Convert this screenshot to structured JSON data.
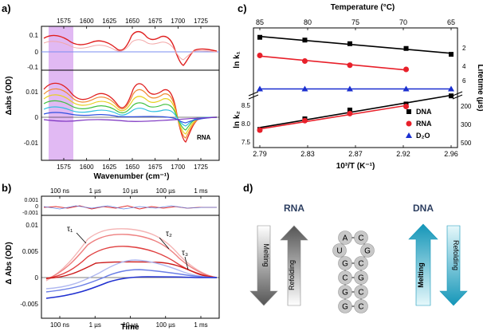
{
  "panel_labels": {
    "a": "a)",
    "b": "b)",
    "c": "c)",
    "d": "d)"
  },
  "panel_a": {
    "top_axis_ticks": [
      "1575",
      "1600",
      "1625",
      "1650",
      "1675",
      "1700",
      "1725"
    ],
    "bottom_axis_ticks": [
      "1575",
      "1600",
      "1625",
      "1650",
      "1675",
      "1700",
      "1725"
    ],
    "xlabel": "Wavenumber (cm⁻¹)",
    "ylabel": "Δabs (OD)",
    "upper_yticks": [
      "0.1",
      "0",
      "-0.1"
    ],
    "lower_yticks": [
      "0.01",
      "0",
      "-0.01"
    ],
    "annotation": "RNA"
  },
  "panel_b": {
    "top_axis_ticks": [
      "100 ns",
      "1 µs",
      "10 µs",
      "100 µs",
      "1 ms"
    ],
    "bottom_axis_ticks": [
      "100 ns",
      "1 µs",
      "10 µs",
      "100 µs",
      "1 ms"
    ],
    "xlabel": "Time",
    "ylabel": "Δ Abs (OD)",
    "upper_yticks": [
      "0.001",
      "0",
      "-0.001"
    ],
    "lower_yticks": [
      "0.01",
      "0.005",
      "0",
      "-0.005"
    ],
    "tau_labels": [
      "τ₁",
      "τ₂",
      "τ₃"
    ]
  },
  "panel_c": {
    "top_axis_label": "Temperature (°C)",
    "top_axis_ticks": [
      "85",
      "80",
      "75",
      "70",
      "65"
    ],
    "bottom_axis_ticks": [
      "2.79",
      "2.83",
      "2.87",
      "2.92",
      "2.96"
    ],
    "xlabel": "10³/T (K⁻¹)",
    "ylabel_upper": "ln k₁",
    "ylabel_lower": "ln k₂",
    "right_axis_label": "Lifetime (µs)",
    "right_ticks_upper": [
      "2",
      "4",
      "6"
    ],
    "right_ticks_lower": [
      "200",
      "300",
      "500"
    ],
    "left_ticks_lower": [
      "8.5",
      "8.0",
      "7.5"
    ],
    "legend": [
      "DNA",
      "RNA",
      "D₂O"
    ]
  },
  "chart_data": [
    {
      "type": "scatter",
      "panel": "c-upper",
      "series": [
        {
          "name": "DNA",
          "color": "#000000",
          "marker": "square",
          "x": [
            2.79,
            2.83,
            2.87,
            2.92,
            2.96
          ],
          "y": [
            0.95,
            0.85,
            0.72,
            0.55,
            0.34
          ]
        },
        {
          "name": "RNA",
          "color": "#e8202a",
          "marker": "circle",
          "x": [
            2.79,
            2.83,
            2.87,
            2.92
          ],
          "y": [
            0.3,
            0.1,
            -0.05,
            -0.2
          ]
        },
        {
          "name": "D₂O",
          "color": "#1a2fd0",
          "marker": "triangle",
          "x": [
            2.79,
            2.83,
            2.87,
            2.92,
            2.96
          ],
          "y": [
            -0.9,
            -0.9,
            -0.9,
            -0.9,
            -0.9
          ]
        }
      ]
    },
    {
      "type": "scatter",
      "panel": "c-lower",
      "series": [
        {
          "name": "DNA",
          "color": "#000000",
          "marker": "square",
          "x": [
            2.79,
            2.83,
            2.87,
            2.92,
            2.96
          ],
          "y": [
            7.9,
            8.2,
            8.45,
            8.62,
            8.85
          ]
        },
        {
          "name": "RNA",
          "color": "#e8202a",
          "marker": "circle",
          "x": [
            2.79,
            2.83,
            2.87,
            2.92
          ],
          "y": [
            7.88,
            8.15,
            8.35,
            8.55
          ]
        }
      ]
    }
  ],
  "panel_d": {
    "rna_title": "RNA",
    "dna_title": "DNA",
    "melting_label": "Melting",
    "refolding_label": "Refolding",
    "hairpin_loop": [
      "A",
      "C",
      "U",
      "G",
      "C"
    ],
    "hairpin_stem_left": [
      "G",
      "C",
      "G",
      "G"
    ],
    "hairpin_stem_right": [
      "C",
      "G",
      "C",
      "C"
    ],
    "colors": {
      "rna_arrow": "#777777",
      "dna_arrow": "#1aa3c2",
      "title": "#2c3e60"
    }
  }
}
